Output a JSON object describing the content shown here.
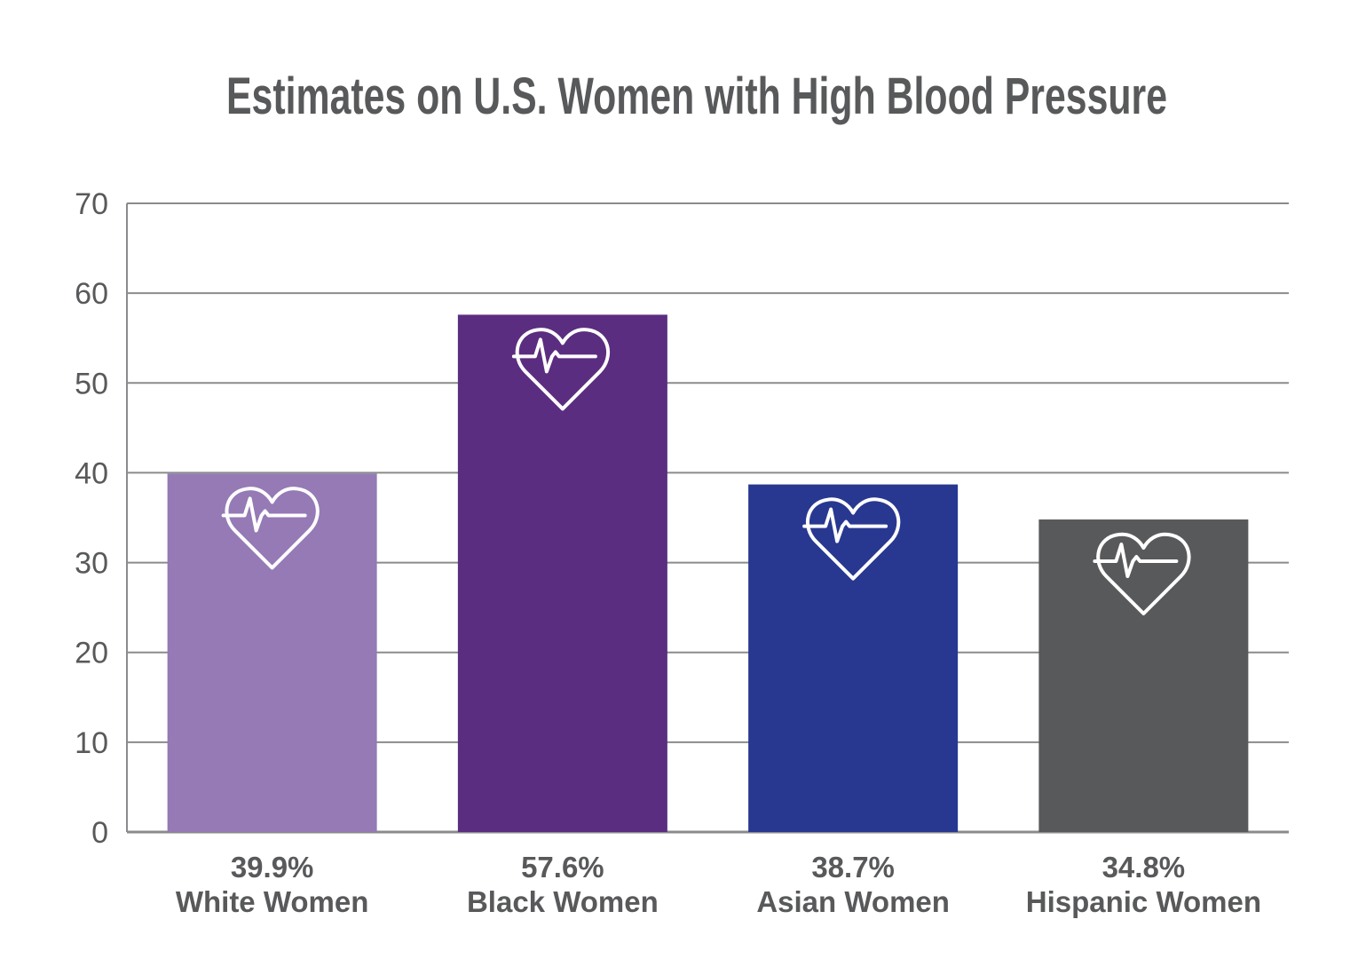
{
  "chart_data": {
    "type": "bar",
    "title": "Estimates on U.S. Women with High Blood Pressure",
    "categories": [
      "White Women",
      "Black Women",
      "Asian Women",
      "Hispanic Women"
    ],
    "values": [
      39.9,
      57.6,
      38.7,
      34.8
    ],
    "value_labels": [
      "39.9%",
      "57.6%",
      "38.7%",
      "34.8%"
    ],
    "bar_colors": [
      "#957ab6",
      "#5b2d80",
      "#283891",
      "#58595b"
    ],
    "ylim": [
      0,
      70
    ],
    "yticks": [
      0,
      10,
      20,
      30,
      40,
      50,
      60,
      70
    ],
    "xlabel": "",
    "ylabel": "",
    "grid": true,
    "bar_icon": "heart-pulse-icon"
  }
}
